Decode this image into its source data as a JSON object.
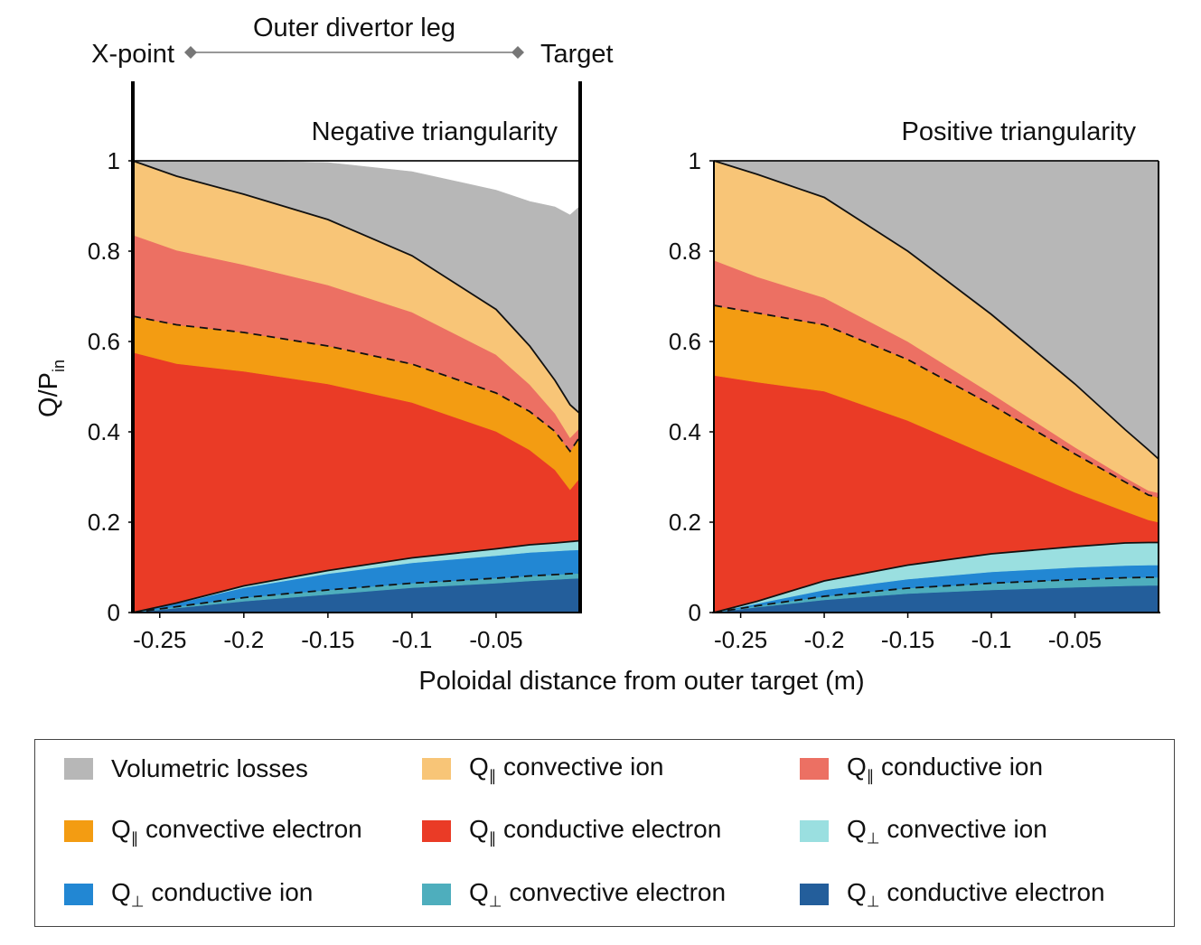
{
  "header": {
    "xpoint_label": "X-point",
    "target_label": "Target",
    "leg_label": "Outer divertor leg"
  },
  "axes": {
    "ylabel_main": "Q/P",
    "ylabel_sub": "in",
    "xlabel": "Poloidal distance from outer target (m)"
  },
  "colors": {
    "volumetric": "#b7b7b7",
    "par_conv_ion": "#f8c577",
    "par_cond_ion": "#ec7063",
    "par_conv_el": "#f39c12",
    "par_cond_el": "#ea3b26",
    "perp_conv_ion": "#9adfe0",
    "perp_cond_ion": "#2287d3",
    "perp_conv_el": "#4eaebd",
    "perp_cond_el": "#235e9b"
  },
  "legend": {
    "items": [
      {
        "key": "volumetric",
        "pre": "",
        "sub": "",
        "text": "Volumetric losses"
      },
      {
        "key": "par_conv_ion",
        "pre": "Q",
        "sub": "∥",
        "text": " convective ion"
      },
      {
        "key": "par_cond_ion",
        "pre": "Q",
        "sub": "∥",
        "text": " conductive ion"
      },
      {
        "key": "par_conv_el",
        "pre": "Q",
        "sub": "∥",
        "text": " convective electron"
      },
      {
        "key": "par_cond_el",
        "pre": "Q",
        "sub": "∥",
        "text": " conductive electron"
      },
      {
        "key": "perp_conv_ion",
        "pre": "Q",
        "sub": "⊥",
        "text": " convective ion"
      },
      {
        "key": "perp_cond_ion",
        "pre": "Q",
        "sub": "⊥",
        "text": " conductive ion"
      },
      {
        "key": "perp_conv_el",
        "pre": "Q",
        "sub": "⊥",
        "text": " convective electron"
      },
      {
        "key": "perp_cond_el",
        "pre": "Q",
        "sub": "⊥",
        "text": " conductive electron"
      }
    ]
  },
  "chart_data": [
    {
      "type": "area",
      "title": "Negative triangularity",
      "xlabel": "Poloidal distance from outer target (m)",
      "ylabel": "Q/Pin",
      "xlim": [
        -0.266,
        0
      ],
      "ylim": [
        0,
        1
      ],
      "xticks": [
        -0.25,
        -0.2,
        -0.15,
        -0.1,
        -0.05
      ],
      "xtick_labels": [
        "-0.25",
        "-0.2",
        "-0.15",
        "-0.1",
        "-0.05"
      ],
      "yticks": [
        0,
        0.2,
        0.4,
        0.6,
        0.8,
        1
      ],
      "ytick_labels": [
        "0",
        "0.2",
        "0.4",
        "0.6",
        "0.8",
        "1"
      ],
      "x": [
        -0.266,
        -0.24,
        -0.2,
        -0.15,
        -0.1,
        -0.05,
        -0.03,
        -0.015,
        -0.006,
        -0.002
      ],
      "series": [
        {
          "key": "perp_cond_el",
          "name": "Q⊥ conductive electron",
          "values": [
            0,
            0.01,
            0.025,
            0.04,
            0.055,
            0.065,
            0.07,
            0.073,
            0.075,
            0.076
          ]
        },
        {
          "key": "perp_conv_el",
          "name": "Q⊥ convective electron",
          "values": [
            0,
            0.003,
            0.008,
            0.01,
            0.01,
            0.011,
            0.011,
            0.011,
            0.011,
            0.011
          ]
        },
        {
          "key": "perp_cond_ion",
          "name": "Q⊥ conductive ion",
          "values": [
            0,
            0.007,
            0.022,
            0.036,
            0.045,
            0.05,
            0.052,
            0.052,
            0.052,
            0.052
          ]
        },
        {
          "key": "perp_conv_ion",
          "name": "Q⊥ convective ion",
          "values": [
            0,
            0.001,
            0.004,
            0.007,
            0.011,
            0.015,
            0.017,
            0.018,
            0.019,
            0.02
          ]
        },
        {
          "key": "par_cond_el",
          "name": "Q∥ conductive electron",
          "values": [
            0.576,
            0.53,
            0.475,
            0.413,
            0.344,
            0.26,
            0.21,
            0.162,
            0.115,
            0.14
          ]
        },
        {
          "key": "par_conv_el",
          "name": "Q∥ convective electron",
          "values": [
            0.08,
            0.086,
            0.086,
            0.084,
            0.085,
            0.085,
            0.085,
            0.085,
            0.085,
            0.091
          ]
        },
        {
          "key": "par_cond_ion",
          "name": "Q∥ conductive ion",
          "values": [
            0.18,
            0.165,
            0.15,
            0.135,
            0.115,
            0.085,
            0.06,
            0.04,
            0.03,
            0.02
          ]
        },
        {
          "key": "par_conv_ion",
          "name": "Q∥ convective ion",
          "values": [
            0.164,
            0.164,
            0.156,
            0.145,
            0.125,
            0.1,
            0.085,
            0.073,
            0.073,
            0.03
          ]
        },
        {
          "key": "volumetric",
          "name": "Volumetric losses",
          "values": [
            0,
            0.034,
            0.074,
            0.126,
            0.186,
            0.264,
            0.32,
            0.384,
            0.42,
            0.46
          ]
        }
      ]
    },
    {
      "type": "area",
      "title": "Positive triangularity",
      "xlabel": "Poloidal distance from outer target (m)",
      "ylabel": "Q/Pin",
      "xlim": [
        -0.266,
        0
      ],
      "ylim": [
        0,
        1
      ],
      "xticks": [
        -0.25,
        -0.2,
        -0.15,
        -0.1,
        -0.05
      ],
      "xtick_labels": [
        "-0.25",
        "-0.2",
        "-0.15",
        "-0.1",
        "-0.05"
      ],
      "yticks": [
        0,
        0.2,
        0.4,
        0.6,
        0.8,
        1
      ],
      "ytick_labels": [
        "0",
        "0.2",
        "0.4",
        "0.6",
        "0.8",
        "1"
      ],
      "x": [
        -0.266,
        -0.24,
        -0.2,
        -0.15,
        -0.1,
        -0.05,
        -0.02,
        -0.006,
        -0.002
      ],
      "series": [
        {
          "key": "perp_cond_el",
          "name": "Q⊥ conductive electron",
          "values": [
            0,
            0.012,
            0.028,
            0.042,
            0.05,
            0.056,
            0.059,
            0.06,
            0.06
          ]
        },
        {
          "key": "perp_conv_el",
          "name": "Q⊥ convective electron",
          "values": [
            0,
            0.003,
            0.008,
            0.012,
            0.015,
            0.017,
            0.018,
            0.018,
            0.018
          ]
        },
        {
          "key": "perp_cond_ion",
          "name": "Q⊥ conductive ion",
          "values": [
            0,
            0.005,
            0.014,
            0.02,
            0.025,
            0.027,
            0.027,
            0.027,
            0.027
          ]
        },
        {
          "key": "perp_conv_ion",
          "name": "Q⊥ convective ion",
          "values": [
            0,
            0.005,
            0.02,
            0.031,
            0.04,
            0.046,
            0.05,
            0.05,
            0.05
          ]
        },
        {
          "key": "par_cond_el",
          "name": "Q∥ conductive electron",
          "values": [
            0.525,
            0.485,
            0.42,
            0.32,
            0.215,
            0.12,
            0.07,
            0.05,
            0.045
          ]
        },
        {
          "key": "par_conv_el",
          "name": "Q∥ convective electron",
          "values": [
            0.155,
            0.153,
            0.147,
            0.135,
            0.115,
            0.085,
            0.065,
            0.055,
            0.055
          ]
        },
        {
          "key": "par_cond_ion",
          "name": "Q∥ conductive ion",
          "values": [
            0.1,
            0.08,
            0.06,
            0.04,
            0.025,
            0.015,
            0.01,
            0.01,
            0.01
          ]
        },
        {
          "key": "par_conv_ion",
          "name": "Q∥ convective ion",
          "values": [
            0.22,
            0.227,
            0.222,
            0.2,
            0.175,
            0.14,
            0.106,
            0.09,
            0.075
          ]
        },
        {
          "key": "volumetric",
          "name": "Volumetric losses",
          "values": [
            0,
            0.03,
            0.081,
            0.2,
            0.34,
            0.494,
            0.595,
            0.64,
            0.66
          ]
        }
      ]
    }
  ]
}
